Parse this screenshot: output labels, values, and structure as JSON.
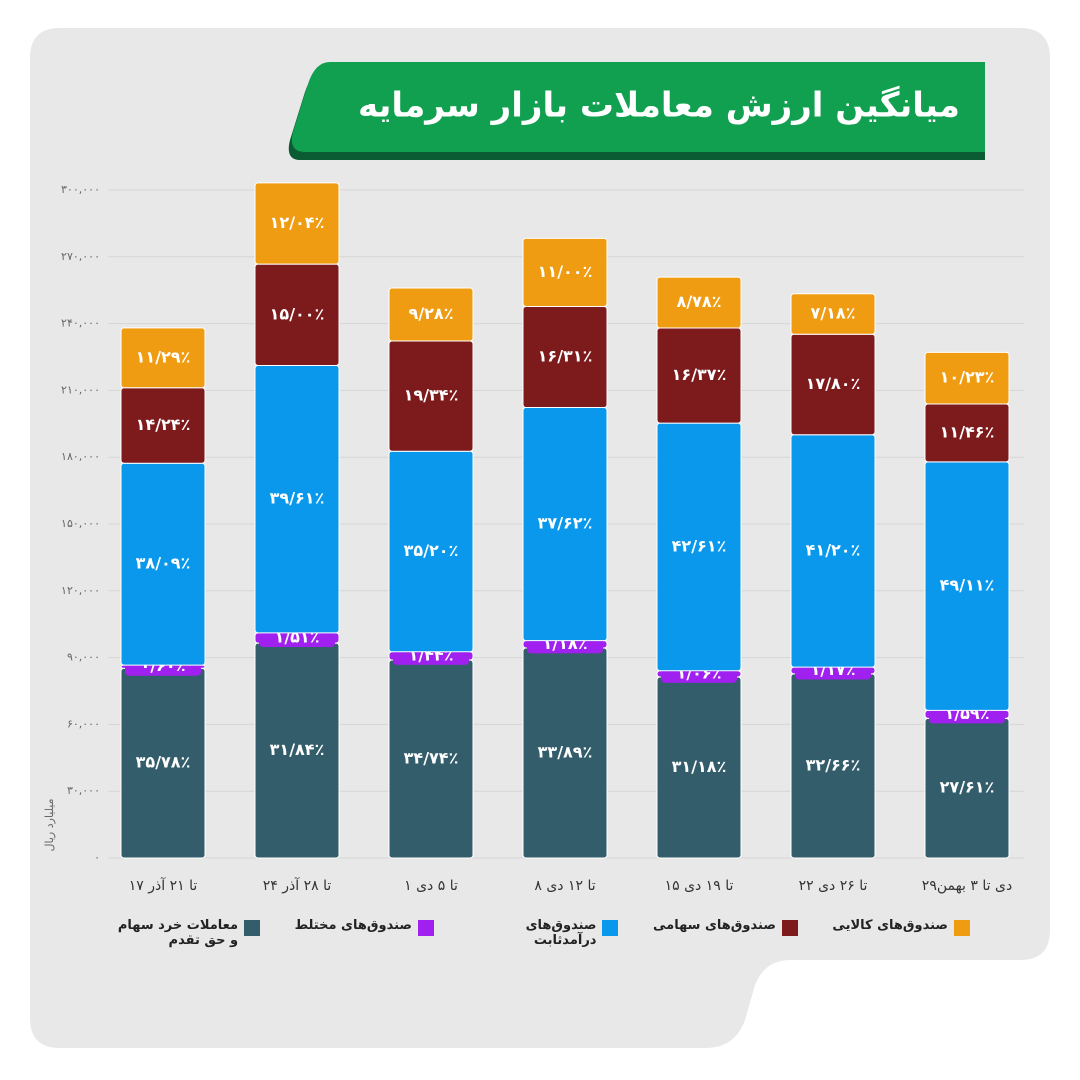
{
  "chart_data": {
    "type": "stacked_bar",
    "title": "میانگین ارزش معاملات بازار سرمایه",
    "y_label": "میلیارد ریال",
    "categories": [
      "۱۷ تا ۲۱ آذر",
      "۲۴ تا ۲۸ آذر",
      "۱ تا ۵ دی",
      "۸ تا ۱۲ دی",
      "۱۵ تا ۱۹ دی",
      "۲۲ تا ۲۶ دی",
      "۲۹دی تا ۳ بهمن"
    ],
    "series": [
      {
        "name": "معاملات خرد سهام و حق تقدم",
        "color": "#345d6b",
        "values": [
          85200,
          96500,
          88900,
          94300,
          81300,
          82700,
          62700
        ],
        "share_labels": [
          "۳۵/۷۸٪",
          "۳۱/۸۴٪",
          "۳۴/۷۴٪",
          "۳۳/۸۹٪",
          "۳۱/۱۸٪",
          "۳۲/۶۶٪",
          "۲۷/۶۱٪"
        ]
      },
      {
        "name": "صندوق‌های مختلط",
        "color": "#a020ef",
        "values": [
          1400,
          4600,
          3700,
          3300,
          2800,
          3000,
          3600
        ],
        "share_labels": [
          "۰/۶۰٪",
          "۱/۵۱٪",
          "۱/۴۴٪",
          "۱/۱۸٪",
          "۱/۰۶٪",
          "۱/۱۷٪",
          "۱/۵۹٪"
        ]
      },
      {
        "name": "صندوق‌های درآمدثابت",
        "color": "#0a98ec",
        "values": [
          90700,
          120100,
          90100,
          104700,
          111200,
          104400,
          111600
        ],
        "share_labels": [
          "۳۸/۰۹٪",
          "۳۹/۶۱٪",
          "۳۵/۲۰٪",
          "۳۷/۶۲٪",
          "۴۲/۶۱٪",
          "۴۱/۲۰٪",
          "۴۹/۱۱٪"
        ]
      },
      {
        "name": "صندوق‌های سهامی",
        "color": "#7d1a1c",
        "values": [
          33900,
          45500,
          49500,
          45400,
          42700,
          45100,
          26000
        ],
        "share_labels": [
          "۱۴/۲۴٪",
          "۱۵/۰۰٪",
          "۱۹/۳۴٪",
          "۱۶/۳۱٪",
          "۱۶/۳۷٪",
          "۱۷/۸۰٪",
          "۱۱/۴۶٪"
        ]
      },
      {
        "name": "صندوق‌های کالایی",
        "color": "#f09c12",
        "values": [
          26900,
          36500,
          23800,
          30600,
          22900,
          18200,
          23200
        ],
        "share_labels": [
          "۱۱/۲۹٪",
          "۱۲/۰۴٪",
          "۹/۲۸٪",
          "۱۱/۰۰٪",
          "۸/۷۸٪",
          "۷/۱۸٪",
          "۱۰/۲۳٪"
        ]
      }
    ],
    "ylim": [
      0,
      300000
    ],
    "yticks": [
      {
        "value": 0,
        "label": "۰"
      },
      {
        "value": 30000,
        "label": "۳۰,۰۰۰"
      },
      {
        "value": 60000,
        "label": "۶۰,۰۰۰"
      },
      {
        "value": 90000,
        "label": "۹۰,۰۰۰"
      },
      {
        "value": 120000,
        "label": "۱۲۰,۰۰۰"
      },
      {
        "value": 150000,
        "label": "۱۵۰,۰۰۰"
      },
      {
        "value": 180000,
        "label": "۱۸۰,۰۰۰"
      },
      {
        "value": 210000,
        "label": "۲۱۰,۰۰۰"
      },
      {
        "value": 240000,
        "label": "۲۴۰,۰۰۰"
      },
      {
        "value": 270000,
        "label": "۲۷۰,۰۰۰"
      },
      {
        "value": 300000,
        "label": "۳۰۰,۰۰۰"
      }
    ],
    "grid": true
  }
}
